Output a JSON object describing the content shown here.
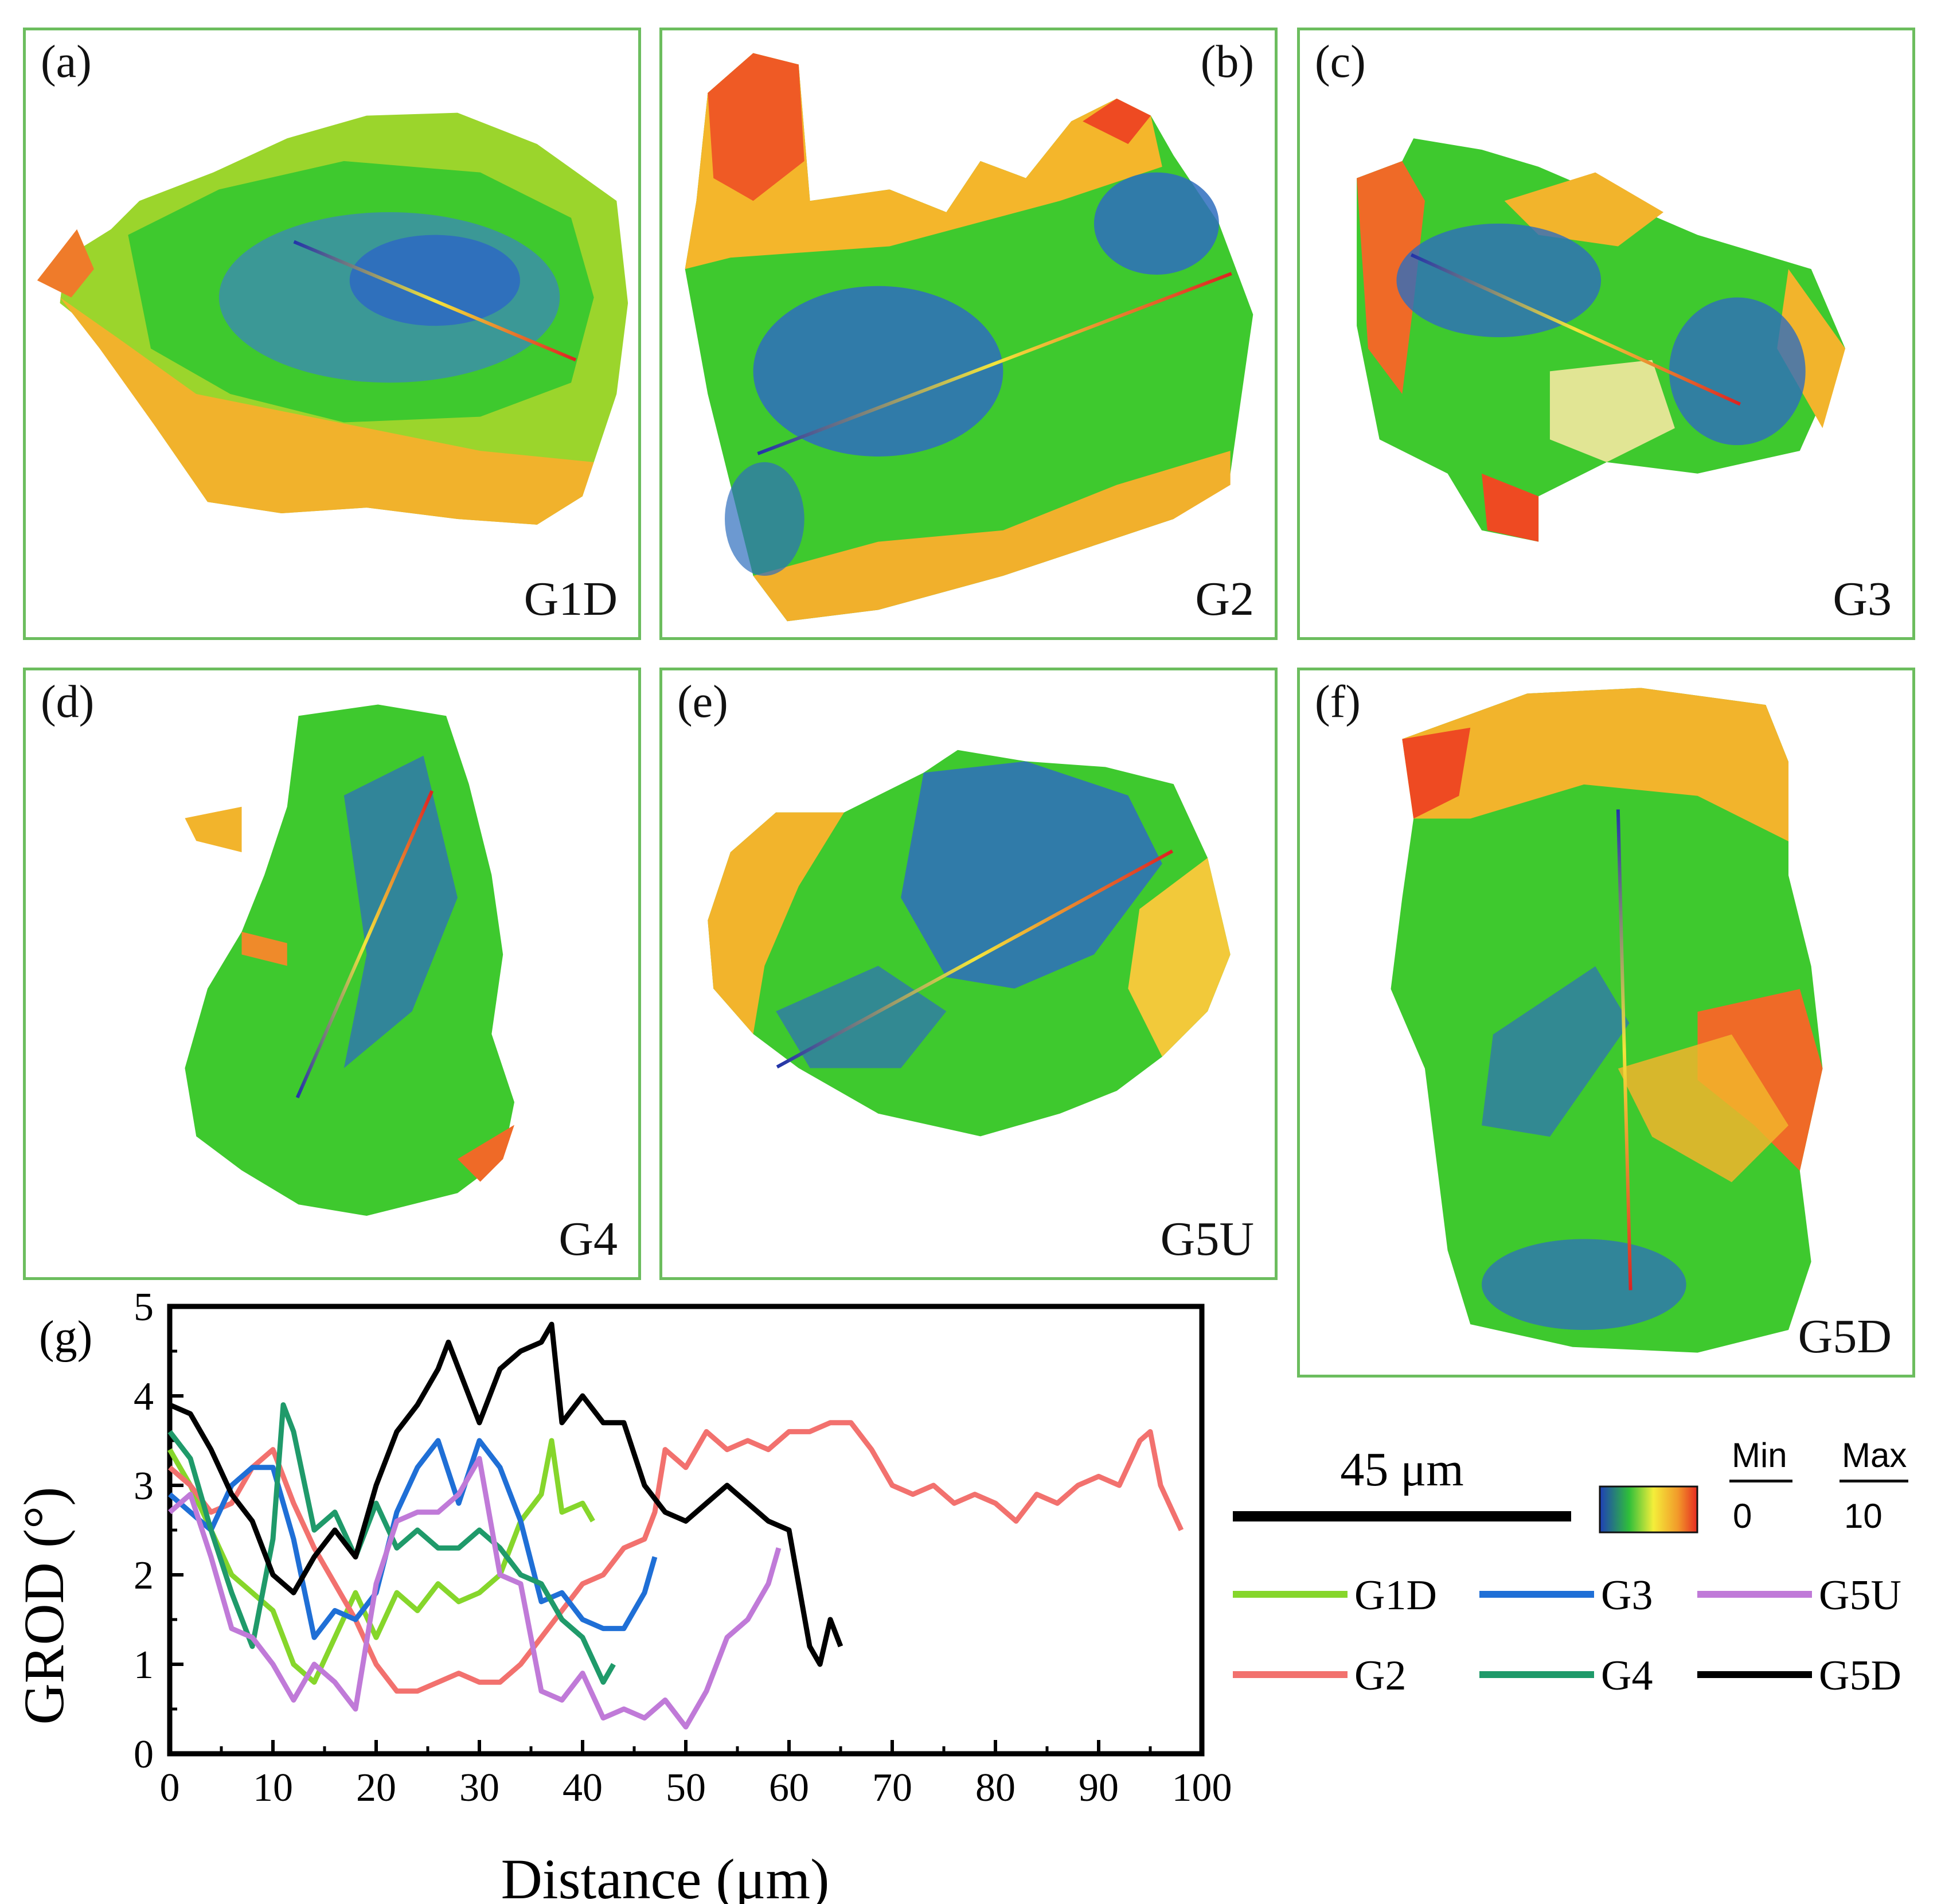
{
  "panels": [
    {
      "id": "a",
      "label": "(a)",
      "grain": "G1D"
    },
    {
      "id": "b",
      "label": "(b)",
      "grain": "G2"
    },
    {
      "id": "c",
      "label": "(c)",
      "grain": "G3"
    },
    {
      "id": "d",
      "label": "(d)",
      "grain": "G4"
    },
    {
      "id": "e",
      "label": "(e)",
      "grain": "G5U"
    },
    {
      "id": "f",
      "label": "(f)",
      "grain": "G5D"
    }
  ],
  "scale_bar": {
    "label": "45 μm"
  },
  "colorbar": {
    "min_title": "Min",
    "min_value": "0",
    "max_title": "Max",
    "max_value": "10"
  },
  "colors": {
    "G1D": "#86d62b",
    "G2": "#f2716e",
    "G3": "#1f6fd6",
    "G4": "#1f9a6a",
    "G5U": "#c07ad8",
    "G5D": "#000000",
    "frame": "#6cbd5e"
  },
  "chart_data": {
    "type": "line",
    "panel_label": "(g)",
    "xlabel": "Distance (μm)",
    "ylabel": "GROD (°)",
    "xlim": [
      0,
      100
    ],
    "ylim": [
      0,
      5
    ],
    "xticks": [
      0,
      10,
      20,
      30,
      40,
      50,
      60,
      70,
      80,
      90,
      100
    ],
    "yticks": [
      0,
      1,
      2,
      3,
      4,
      5
    ],
    "legend": [
      "G1D",
      "G3",
      "G5U",
      "G2",
      "G4",
      "G5D"
    ],
    "series": [
      {
        "name": "G1D",
        "x": [
          0,
          2,
          4,
          6,
          8,
          10,
          12,
          14,
          16,
          18,
          20,
          22,
          24,
          26,
          28,
          30,
          32,
          34,
          36,
          37,
          38,
          40,
          41
        ],
        "y": [
          3.4,
          3.0,
          2.5,
          2.0,
          1.8,
          1.6,
          1.0,
          0.8,
          1.3,
          1.8,
          1.3,
          1.8,
          1.6,
          1.9,
          1.7,
          1.8,
          2.0,
          2.6,
          2.9,
          3.5,
          2.7,
          2.8,
          2.6
        ]
      },
      {
        "name": "G2",
        "x": [
          0,
          2,
          4,
          6,
          8,
          10,
          12,
          14,
          16,
          18,
          20,
          22,
          24,
          26,
          28,
          30,
          32,
          34,
          36,
          38,
          40,
          42,
          44,
          46,
          47,
          48,
          50,
          52,
          54,
          56,
          58,
          60,
          62,
          64,
          66,
          68,
          70,
          72,
          74,
          76,
          78,
          80,
          82,
          84,
          86,
          88,
          90,
          92,
          94,
          95,
          96,
          98
        ],
        "y": [
          3.2,
          3.0,
          2.7,
          2.8,
          3.2,
          3.4,
          2.8,
          2.3,
          1.9,
          1.5,
          1.0,
          0.7,
          0.7,
          0.8,
          0.9,
          0.8,
          0.8,
          1.0,
          1.3,
          1.6,
          1.9,
          2.0,
          2.3,
          2.4,
          2.7,
          3.4,
          3.2,
          3.6,
          3.4,
          3.5,
          3.4,
          3.6,
          3.6,
          3.7,
          3.7,
          3.4,
          3.0,
          2.9,
          3.0,
          2.8,
          2.9,
          2.8,
          2.6,
          2.9,
          2.8,
          3.0,
          3.1,
          3.0,
          3.5,
          3.6,
          3.0,
          2.5
        ]
      },
      {
        "name": "G3",
        "x": [
          0,
          2,
          4,
          6,
          8,
          10,
          12,
          14,
          16,
          18,
          20,
          22,
          24,
          26,
          28,
          30,
          32,
          34,
          36,
          38,
          40,
          42,
          44,
          46,
          47
        ],
        "y": [
          2.9,
          2.7,
          2.5,
          3.0,
          3.2,
          3.2,
          2.4,
          1.3,
          1.6,
          1.5,
          1.8,
          2.7,
          3.2,
          3.5,
          2.8,
          3.5,
          3.2,
          2.6,
          1.7,
          1.8,
          1.5,
          1.4,
          1.4,
          1.8,
          2.2
        ]
      },
      {
        "name": "G4",
        "x": [
          0,
          2,
          4,
          6,
          8,
          10,
          11,
          12,
          14,
          16,
          18,
          20,
          22,
          24,
          26,
          28,
          30,
          32,
          34,
          36,
          38,
          40,
          42,
          43
        ],
        "y": [
          3.6,
          3.3,
          2.5,
          1.8,
          1.2,
          2.4,
          3.9,
          3.6,
          2.5,
          2.7,
          2.2,
          2.8,
          2.3,
          2.5,
          2.3,
          2.3,
          2.5,
          2.3,
          2.0,
          1.9,
          1.5,
          1.3,
          0.8,
          1.0
        ]
      },
      {
        "name": "G5U",
        "x": [
          0,
          2,
          4,
          6,
          8,
          10,
          12,
          14,
          16,
          18,
          20,
          22,
          24,
          26,
          28,
          30,
          32,
          34,
          36,
          38,
          40,
          42,
          44,
          46,
          48,
          50,
          52,
          54,
          56,
          58,
          59
        ],
        "y": [
          2.7,
          2.9,
          2.2,
          1.4,
          1.3,
          1.0,
          0.6,
          1.0,
          0.8,
          0.5,
          1.9,
          2.6,
          2.7,
          2.7,
          2.9,
          3.3,
          2.0,
          1.9,
          0.7,
          0.6,
          0.9,
          0.4,
          0.5,
          0.4,
          0.6,
          0.3,
          0.7,
          1.3,
          1.5,
          1.9,
          2.3
        ]
      },
      {
        "name": "G5D",
        "x": [
          0,
          2,
          4,
          6,
          8,
          10,
          12,
          14,
          16,
          18,
          20,
          22,
          24,
          26,
          27,
          28,
          30,
          32,
          34,
          36,
          37,
          38,
          40,
          42,
          44,
          46,
          48,
          50,
          52,
          54,
          56,
          58,
          60,
          62,
          63,
          64,
          65
        ],
        "y": [
          3.9,
          3.8,
          3.4,
          2.9,
          2.6,
          2.0,
          1.8,
          2.2,
          2.5,
          2.2,
          3.0,
          3.6,
          3.9,
          4.3,
          4.6,
          4.3,
          3.7,
          4.3,
          4.5,
          4.6,
          4.8,
          3.7,
          4.0,
          3.7,
          3.7,
          3.0,
          2.7,
          2.6,
          2.8,
          3.0,
          2.8,
          2.6,
          2.5,
          1.2,
          1.0,
          1.5,
          1.2
        ]
      }
    ]
  }
}
